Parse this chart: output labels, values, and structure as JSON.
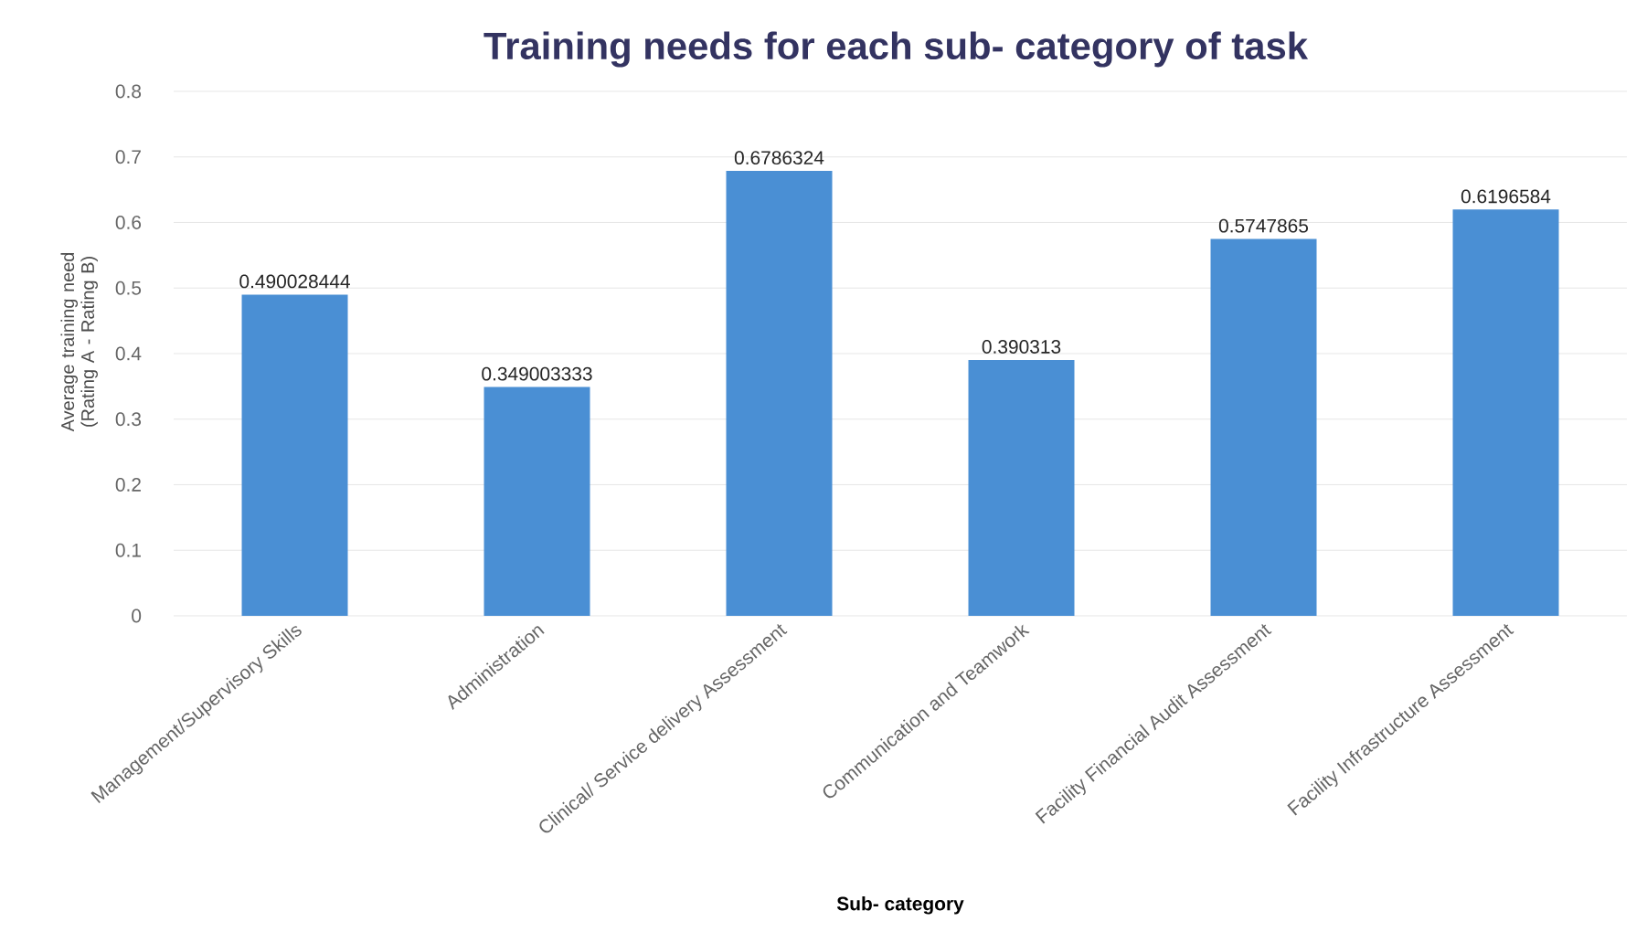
{
  "chart_data": {
    "type": "bar",
    "title": "Training needs for each sub- category of task",
    "xlabel": "Sub- category",
    "ylabel": "Average training need (Rating A - Rating B)",
    "categories": [
      "Management/Supervisory Skills",
      "Administration",
      "Clinical/ Service delivery Assessment",
      "Communication and Teamwork",
      "Facility Financial Audit Assessment",
      "Facility Infrastructure Assessment"
    ],
    "values": [
      0.490028444,
      0.349003333,
      0.6786324,
      0.390313,
      0.5747865,
      0.6196584
    ],
    "color": "#4a8fd4",
    "ylim": [
      0,
      0.8
    ],
    "yticks": [
      0,
      0.1,
      0.2,
      0.3,
      0.4,
      0.5,
      0.6,
      0.7,
      0.8
    ],
    "grid": "y",
    "data_labels": true
  }
}
